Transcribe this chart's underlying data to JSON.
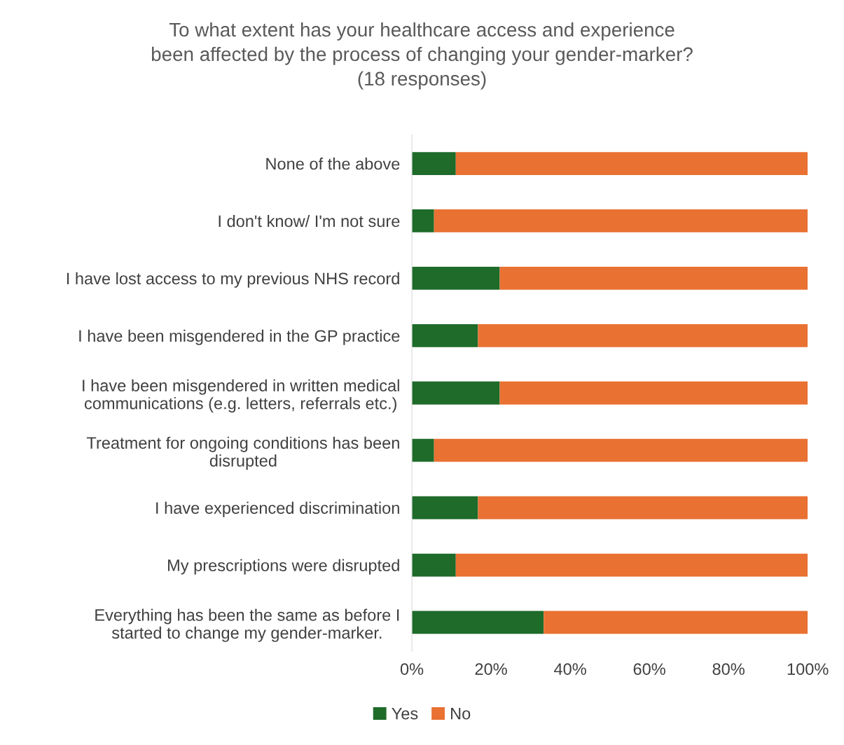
{
  "chart_data": {
    "type": "bar",
    "orientation": "horizontal",
    "stacked": true,
    "title": "To what extent has your healthcare access and experience\nbeen affected by the process of changing your gender-marker?\n(18 responses)",
    "categories": [
      "None of the above",
      "I don't know/ I'm not sure",
      "I have lost access to my previous NHS record",
      "I have been misgendered in the GP practice",
      "I have been misgendered in written medical\ncommunications (e.g. letters, referrals etc.)",
      "Treatment for ongoing conditions has been\ndisrupted",
      "I have experienced discrimination",
      "My prescriptions were disrupted",
      "Everything has been the same as before I\nstarted to change my gender-marker."
    ],
    "series": [
      {
        "name": "Yes",
        "color": "#1e6b2a",
        "values": [
          11.1,
          5.6,
          22.2,
          16.7,
          22.2,
          5.6,
          16.7,
          11.1,
          33.3
        ]
      },
      {
        "name": "No",
        "color": "#e97132",
        "values": [
          88.9,
          94.4,
          77.8,
          83.3,
          77.8,
          94.4,
          83.3,
          88.9,
          66.7
        ]
      }
    ],
    "xlim": [
      0,
      100
    ],
    "xticks": [
      {
        "value": 0,
        "label": "0%"
      },
      {
        "value": 20,
        "label": "20%"
      },
      {
        "value": 40,
        "label": "40%"
      },
      {
        "value": 60,
        "label": "60%"
      },
      {
        "value": 80,
        "label": "80%"
      },
      {
        "value": 100,
        "label": "100%"
      }
    ],
    "grid": false,
    "legend": "bottom"
  }
}
